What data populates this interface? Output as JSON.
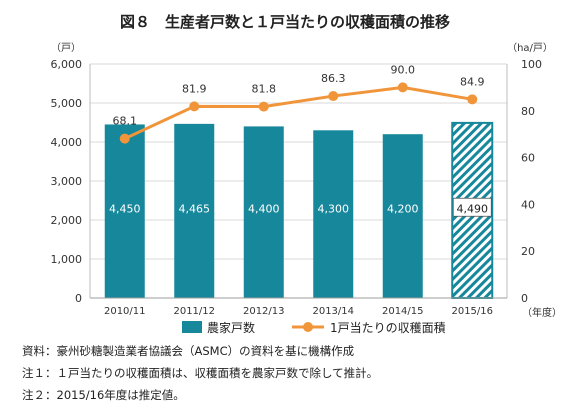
{
  "chart_data": {
    "type": "bar",
    "title": "図８　生産者戸数と１戸当たりの収穫面積の推移",
    "left_unit": "（戸）",
    "right_unit": "（ha/戸）",
    "x_unit": "（年度）",
    "categories": [
      "2010/11",
      "2011/12",
      "2012/13",
      "2013/14",
      "2014/15",
      "2015/16"
    ],
    "ylim_left": [
      0,
      6000
    ],
    "left_ticks": [
      "0",
      "1,000",
      "2,000",
      "3,000",
      "4,000",
      "5,000",
      "6,000"
    ],
    "ylim_right": [
      0,
      100
    ],
    "right_ticks": [
      "0",
      "20",
      "40",
      "60",
      "80",
      "100"
    ],
    "grid": true,
    "legend_position": "bottom",
    "series": [
      {
        "name": "農家戸数",
        "type": "bar",
        "axis": "left",
        "values": [
          4450,
          4465,
          4400,
          4300,
          4200,
          4490
        ],
        "labels": [
          "4,450",
          "4,465",
          "4,400",
          "4,300",
          "4,200",
          "4,490"
        ],
        "estimated_index": 5
      },
      {
        "name": "1戸当たりの収穫面積",
        "type": "line",
        "axis": "right",
        "values": [
          68.1,
          81.9,
          81.8,
          86.3,
          90.0,
          84.9
        ],
        "labels": [
          "68.1",
          "81.9",
          "81.8",
          "86.3",
          "90.0",
          "84.9"
        ]
      }
    ],
    "colors": {
      "bar": "#17879b",
      "line": "#f0953a",
      "grid": "#d9d9d9",
      "axis": "#bdbdbd"
    }
  },
  "notes": [
    "資料：豪州砂糖製造業者協議会（ASMC）の資料を基に機構作成",
    "注１：１戸当たりの収穫面積は、収穫面積を農家戸数で除して推計。",
    "注２：2015/16年度は推定値。"
  ]
}
